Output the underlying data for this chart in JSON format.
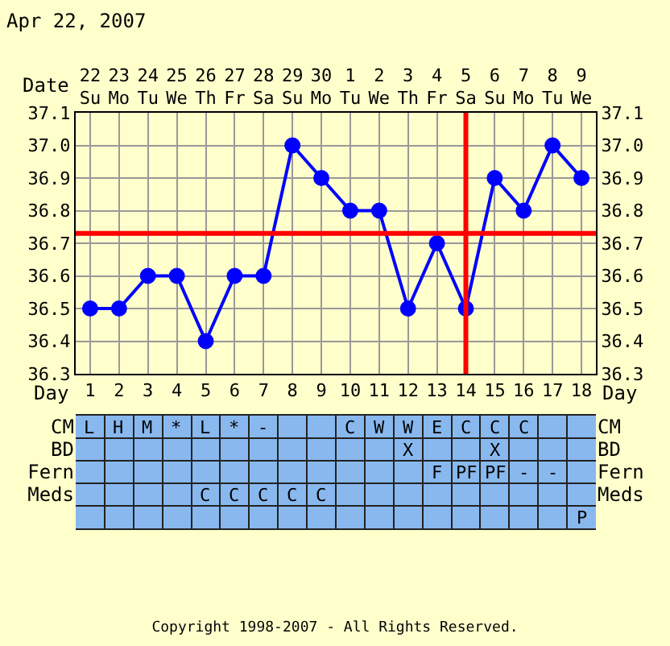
{
  "chart_data": [
    {
      "type": "line",
      "title": "Apr 22, 2007",
      "xlabel": "Day",
      "x2label": "Date",
      "x": [
        1,
        2,
        3,
        4,
        5,
        6,
        7,
        8,
        9,
        10,
        11,
        12,
        13,
        14,
        15,
        16,
        17,
        18
      ],
      "series": [
        {
          "color": "#0000ff",
          "values": [
            36.5,
            36.5,
            36.6,
            36.6,
            36.4,
            36.6,
            36.6,
            37.0,
            36.9,
            36.8,
            36.8,
            36.5,
            36.7,
            36.5,
            36.9,
            36.8,
            37.0,
            36.9
          ]
        }
      ],
      "xlim": [
        0.5,
        18.5
      ],
      "xticks": [
        1,
        2,
        3,
        4,
        5,
        6,
        7,
        8,
        9,
        10,
        11,
        12,
        13,
        14,
        15,
        16,
        17,
        18
      ],
      "x2lim": [
        "2007-04-21T12:00",
        "2007-05-09T12:00"
      ],
      "x2ticks": [
        {
          "value": "2007-04-22",
          "label": "22\nSu"
        },
        {
          "value": "2007-04-23",
          "label": "23\nMo"
        },
        {
          "value": "2007-04-24",
          "label": "24\nTu"
        },
        {
          "value": "2007-04-25",
          "label": "25\nWe"
        },
        {
          "value": "2007-04-26",
          "label": "26\nTh"
        },
        {
          "value": "2007-04-27",
          "label": "27\nFr"
        },
        {
          "value": "2007-04-28",
          "label": "28\nSa"
        },
        {
          "value": "2007-04-29",
          "label": "29\nSu"
        },
        {
          "value": "2007-04-30",
          "label": "30\nMo"
        },
        {
          "value": "2007-05-01",
          "label": "1\nTu"
        },
        {
          "value": "2007-05-02",
          "label": "2\nWe"
        },
        {
          "value": "2007-05-03",
          "label": "3\nTh"
        },
        {
          "value": "2007-05-04",
          "label": "4\nFr"
        },
        {
          "value": "2007-05-05",
          "label": "5\nSa"
        },
        {
          "value": "2007-05-06",
          "label": "6\nSu"
        },
        {
          "value": "2007-05-07",
          "label": "7\nMo"
        },
        {
          "value": "2007-05-08",
          "label": "8\nTu"
        },
        {
          "value": "2007-05-09",
          "label": "9\nWe"
        }
      ],
      "ylim": [
        36.3,
        37.1
      ],
      "yticks": [
        {
          "value": 36.3,
          "label": "36.3"
        },
        {
          "value": 36.4,
          "label": "36.4"
        },
        {
          "value": 36.5,
          "label": "36.5"
        },
        {
          "value": 36.6,
          "label": "36.6"
        },
        {
          "value": 36.7,
          "label": "36.7"
        },
        {
          "value": 36.8,
          "label": "36.8"
        },
        {
          "value": 36.9,
          "label": "36.9"
        },
        {
          "value": 37.0,
          "label": "37.0"
        },
        {
          "value": 37.1,
          "label": "37.1"
        }
      ],
      "y2lim": [
        36.3,
        37.1
      ],
      "y2ticks": [
        {
          "value": 36.3,
          "label": "36.3"
        },
        {
          "value": 36.4,
          "label": "36.4"
        },
        {
          "value": 36.5,
          "label": "36.5"
        },
        {
          "value": 36.6,
          "label": "36.6"
        },
        {
          "value": 36.7,
          "label": "36.7"
        },
        {
          "value": 36.8,
          "label": "36.8"
        },
        {
          "value": 36.9,
          "label": "36.9"
        },
        {
          "value": 37.0,
          "label": "37.0"
        },
        {
          "value": 37.1,
          "label": "37.1"
        }
      ],
      "ref_lines": [
        {
          "axis": "y",
          "value": 36.73,
          "color": "#ff0000"
        },
        {
          "axis": "x",
          "value": 14,
          "color": "#ff0000"
        }
      ],
      "grid": true,
      "marker": "circle",
      "line_style": "solid"
    },
    {
      "type": "heatmap",
      "categories": [
        null,
        null,
        null,
        null,
        null,
        null,
        null,
        null,
        null,
        null,
        null,
        null,
        null,
        null,
        null,
        null,
        null,
        null
      ],
      "y_categories": [
        "CM",
        "BD",
        "Fern",
        "Meds",
        null
      ],
      "y2_categories": [
        "CM",
        "BD",
        "Fern",
        "Meds",
        null
      ],
      "cells": [
        [
          "L",
          "H",
          "M",
          "*",
          "L",
          "*",
          "-",
          null,
          null,
          "C",
          "W",
          "W",
          "E",
          "C",
          "C",
          "C",
          null,
          null
        ],
        [
          null,
          null,
          null,
          null,
          null,
          null,
          null,
          null,
          null,
          null,
          null,
          "X",
          null,
          null,
          "X",
          null,
          null,
          null
        ],
        [
          null,
          null,
          null,
          null,
          null,
          null,
          null,
          null,
          null,
          null,
          null,
          null,
          "F",
          "PF",
          "PF",
          "-",
          "-",
          null
        ],
        [
          null,
          null,
          null,
          null,
          "C",
          "C",
          "C",
          "C",
          "C",
          null,
          null,
          null,
          null,
          null,
          null,
          null,
          null,
          null
        ],
        [
          null,
          null,
          null,
          null,
          null,
          null,
          null,
          null,
          null,
          null,
          null,
          null,
          null,
          null,
          null,
          null,
          null,
          "P"
        ]
      ],
      "annotations": [
        "Copyright 1998-2007 - All Rights Reserved."
      ]
    }
  ]
}
